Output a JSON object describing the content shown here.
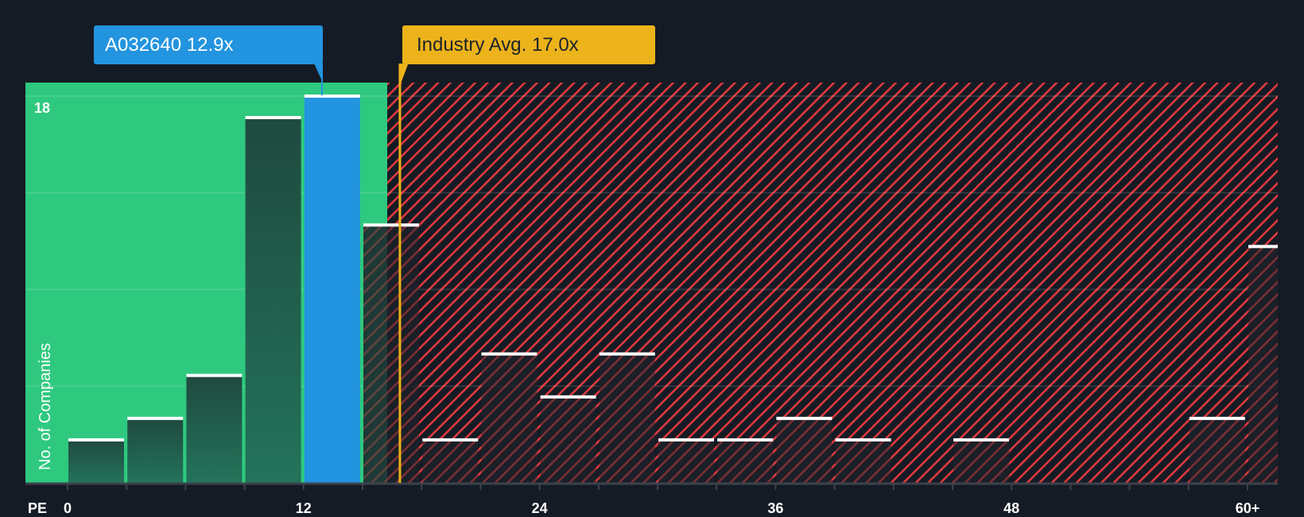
{
  "callouts": {
    "company": {
      "label": "A032640 12.9x",
      "value": 12.9,
      "color": "#2394df"
    },
    "industry": {
      "label": "Industry Avg. 17.0x",
      "value": 17.0,
      "color": "#ecb31a"
    }
  },
  "axis": {
    "x_prefix": "PE",
    "y_label": "No. of Companies",
    "y_top_label": "18",
    "x_ticks": [
      "0",
      "12",
      "24",
      "36",
      "48",
      "60+"
    ]
  },
  "colors": {
    "background": "#151b24",
    "undervalued_zone": "#2ec97f",
    "overvalued_hatch": "#e0393e",
    "bar_dark": "#1f4a3f",
    "highlight_bar": "#2394df",
    "bar_cap": "#ffffff"
  },
  "chart_data": {
    "type": "bar",
    "title": "",
    "xlabel": "PE",
    "ylabel": "No. of Companies",
    "categories": [
      "0-3",
      "3-6",
      "6-9",
      "9-12",
      "12-15",
      "15-18",
      "18-21",
      "21-24",
      "24-27",
      "27-30",
      "30-33",
      "33-36",
      "36-39",
      "39-42",
      "42-45",
      "45-48",
      "48-51",
      "51-54",
      "54-57",
      "57-60",
      "60+"
    ],
    "values": [
      2,
      3,
      5,
      17,
      18,
      12,
      2,
      6,
      4,
      6,
      2,
      2,
      3,
      2,
      0,
      2,
      0,
      0,
      0,
      3,
      11
    ],
    "highlight_index": 4,
    "company_pe": 12.9,
    "industry_avg_pe": 17.0,
    "ylim": [
      0,
      18
    ],
    "y_gridlines": [
      0,
      4.5,
      9,
      13.5,
      18
    ],
    "x_tick_labels": [
      "0",
      "12",
      "24",
      "36",
      "48",
      "60+"
    ],
    "grid": true,
    "legend": "none"
  }
}
